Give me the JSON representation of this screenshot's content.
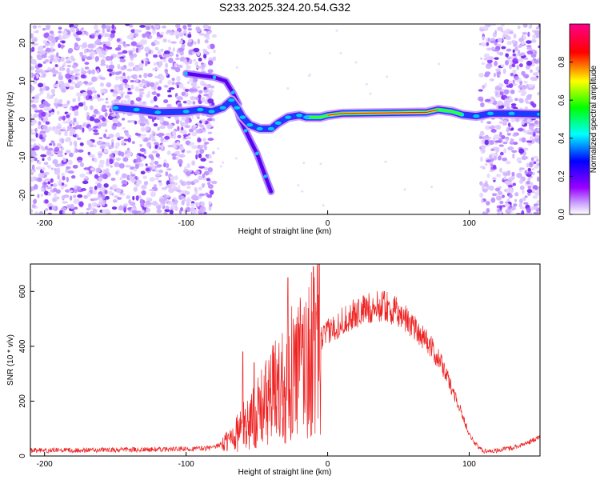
{
  "figure_title": "S233.2025.324.20.54.G32",
  "colors": {
    "snr_line": "#ee2222",
    "axis": "#000000"
  },
  "chart_data": [
    {
      "type": "heatmap",
      "name": "spectrogram",
      "xlabel": "Height of straight line (km)",
      "ylabel": "Frequency (Hz)",
      "xlim": [
        -210,
        150
      ],
      "ylim": [
        -25,
        25
      ],
      "xticks": [
        -200,
        -100,
        0,
        100
      ],
      "yticks": [
        -20,
        -10,
        0,
        10,
        20
      ],
      "colorbar": {
        "label": "Normalized spectral amplitude",
        "range": [
          0,
          1
        ],
        "ticks": [
          0.0,
          0.2,
          0.4,
          0.6,
          0.8
        ],
        "colormap": [
          "#ffffff",
          "#9a00ff",
          "#0000ff",
          "#00ffff",
          "#00ff00",
          "#ffff00",
          "#ff0000",
          "#ff0080"
        ]
      },
      "ridge": {
        "points": [
          [
            -150,
            3
          ],
          [
            -135,
            2.5
          ],
          [
            -120,
            1.8
          ],
          [
            -100,
            2
          ],
          [
            -90,
            2.5
          ],
          [
            -82,
            2
          ],
          [
            -74,
            3
          ],
          [
            -68,
            5
          ],
          [
            -64,
            3
          ],
          [
            -60,
            0.5
          ],
          [
            -55,
            -1.5
          ],
          [
            -48,
            -2.5
          ],
          [
            -40,
            -2.5
          ],
          [
            -35,
            -1
          ],
          [
            -28,
            0.5
          ],
          [
            -20,
            1
          ],
          [
            -15,
            0.5
          ],
          [
            -10,
            0.5
          ],
          [
            -5,
            0.5
          ],
          [
            0,
            1
          ],
          [
            10,
            1.5
          ],
          [
            30,
            1.6
          ],
          [
            50,
            1.7
          ],
          [
            70,
            1.8
          ],
          [
            78,
            2.5
          ],
          [
            88,
            2
          ],
          [
            95,
            1.2
          ],
          [
            105,
            0.8
          ],
          [
            115,
            1.5
          ],
          [
            130,
            1.5
          ],
          [
            150,
            1.3
          ]
        ],
        "peak_amplitude_range_km": [
          0,
          80
        ]
      },
      "upper_branch": [
        [
          -100,
          12
        ],
        [
          -90,
          11.5
        ],
        [
          -80,
          11
        ],
        [
          -72,
          10
        ],
        [
          -67,
          7
        ],
        [
          -63,
          4
        ]
      ],
      "lower_branch": [
        [
          -65,
          4
        ],
        [
          -62,
          0
        ],
        [
          -58,
          -3
        ],
        [
          -54,
          -6
        ],
        [
          -50,
          -9
        ],
        [
          -47,
          -12
        ],
        [
          -44,
          -15
        ],
        [
          -40,
          -19
        ]
      ],
      "noise_regions_km": [
        [
          -210,
          -80
        ],
        [
          108,
          150
        ]
      ]
    },
    {
      "type": "line",
      "name": "snr",
      "xlabel": "Height of straight line (km)",
      "ylabel": "SNR (10 * v/v)",
      "xlim": [
        -210,
        150
      ],
      "ylim": [
        0,
        700
      ],
      "xticks": [
        -200,
        -100,
        0,
        100
      ],
      "yticks": [
        0,
        200,
        400,
        600
      ],
      "envelope": [
        [
          -210,
          20
        ],
        [
          -150,
          22
        ],
        [
          -100,
          25
        ],
        [
          -80,
          30
        ],
        [
          -70,
          60
        ],
        [
          -60,
          110
        ],
        [
          -50,
          160
        ],
        [
          -40,
          230
        ],
        [
          -30,
          290
        ],
        [
          -20,
          340
        ],
        [
          -10,
          400
        ],
        [
          0,
          450
        ],
        [
          10,
          490
        ],
        [
          20,
          520
        ],
        [
          30,
          540
        ],
        [
          40,
          545
        ],
        [
          50,
          520
        ],
        [
          60,
          480
        ],
        [
          70,
          420
        ],
        [
          80,
          340
        ],
        [
          90,
          220
        ],
        [
          100,
          80
        ],
        [
          105,
          40
        ],
        [
          110,
          18
        ],
        [
          120,
          20
        ],
        [
          130,
          30
        ],
        [
          140,
          45
        ],
        [
          150,
          70
        ]
      ],
      "spikes": [
        [
          -60,
          380
        ],
        [
          -52,
          340
        ],
        [
          -28,
          650
        ],
        [
          -18,
          480
        ],
        [
          -10,
          690
        ],
        [
          -8,
          520
        ],
        [
          40,
          600
        ]
      ]
    }
  ]
}
